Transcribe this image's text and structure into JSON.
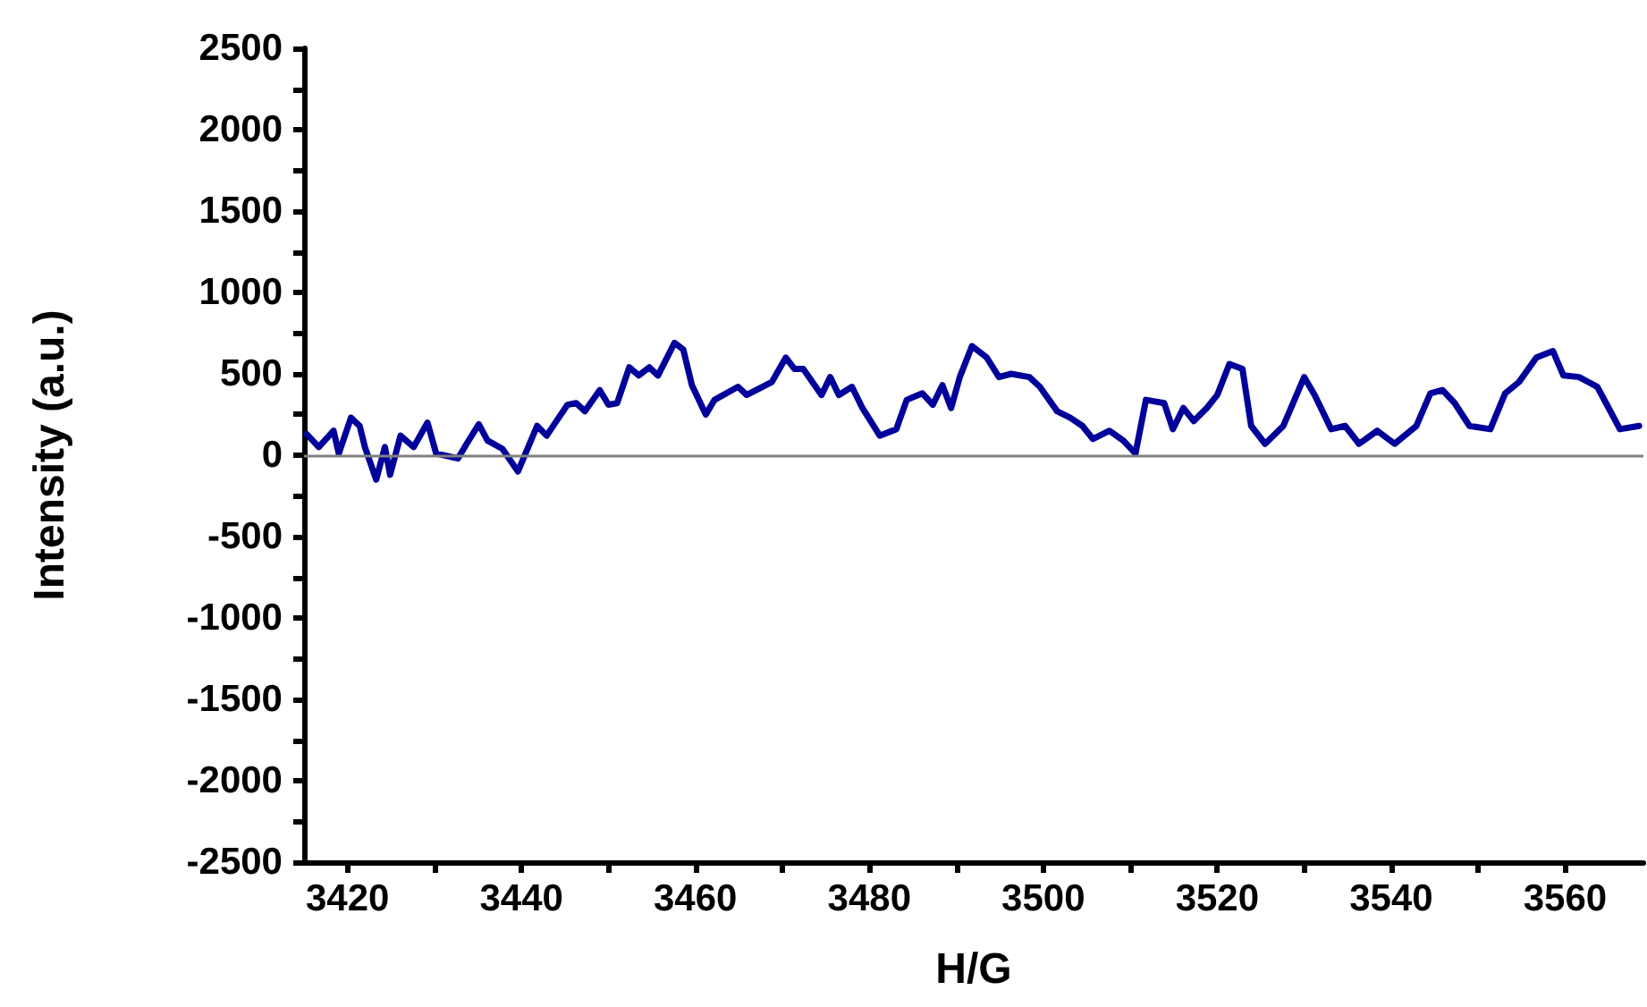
{
  "chart_data": {
    "type": "line",
    "xlabel": "H/G",
    "ylabel": "Intensity (a.u.)",
    "x": [
      3415.3,
      3416.7,
      3418.4,
      3419.0,
      3420.4,
      3421.4,
      3422.0,
      3423.3,
      3424.3,
      3424.9,
      3426.1,
      3427.6,
      3429.2,
      3430.2,
      3432.7,
      3433.7,
      3435.1,
      3436.1,
      3437.8,
      3439.6,
      3441.8,
      3442.9,
      3443.9,
      3445.3,
      3446.3,
      3447.3,
      3449.0,
      3450.0,
      3451.0,
      3452.4,
      3453.5,
      3454.7,
      3455.7,
      3457.6,
      3458.6,
      3459.6,
      3461.2,
      3462.2,
      3464.9,
      3465.9,
      3468.8,
      3470.4,
      3471.4,
      3472.4,
      3474.5,
      3475.5,
      3476.5,
      3478.0,
      3479.2,
      3481.2,
      3483.1,
      3484.3,
      3486.1,
      3487.3,
      3488.4,
      3489.4,
      3490.4,
      3491.8,
      3493.5,
      3494.9,
      3496.3,
      3498.4,
      3499.6,
      3501.6,
      3503.1,
      3504.5,
      3505.7,
      3507.6,
      3509.2,
      3510.6,
      3511.8,
      3513.9,
      3514.9,
      3516.1,
      3517.3,
      3518.8,
      3520.0,
      3521.4,
      3522.9,
      3523.9,
      3525.5,
      3527.6,
      3530.0,
      3531.2,
      3533.1,
      3534.7,
      3536.3,
      3538.4,
      3540.4,
      3542.9,
      3544.5,
      3545.9,
      3547.3,
      3549.0,
      3551.4,
      3553.1,
      3554.7,
      3556.7,
      3558.6,
      3559.8,
      3561.6,
      3563.7,
      3564.7,
      3566.3,
      3568.5
    ],
    "series": [
      {
        "color": "#00009a",
        "values": [
          130,
          50,
          150,
          10,
          230,
          180,
          50,
          -150,
          50,
          -120,
          120,
          50,
          200,
          10,
          -20,
          70,
          190,
          90,
          40,
          -100,
          180,
          120,
          200,
          310,
          320,
          270,
          400,
          310,
          320,
          540,
          490,
          540,
          490,
          690,
          650,
          430,
          250,
          340,
          420,
          370,
          450,
          600,
          530,
          530,
          370,
          480,
          370,
          420,
          290,
          120,
          160,
          340,
          380,
          310,
          430,
          290,
          480,
          670,
          600,
          480,
          500,
          480,
          420,
          270,
          230,
          180,
          100,
          150,
          90,
          10,
          340,
          320,
          160,
          290,
          210,
          290,
          370,
          560,
          530,
          180,
          70,
          180,
          480,
          370,
          160,
          180,
          70,
          150,
          70,
          180,
          380,
          400,
          320,
          180,
          160,
          380,
          450,
          600,
          640,
          490,
          480,
          420,
          320,
          160,
          180
        ]
      }
    ],
    "xlim": [
      3415,
      3569
    ],
    "xticks": [
      3420,
      {
        "value": 3430,
        "label": null
      },
      3440,
      {
        "value": 3450,
        "label": null
      },
      3460,
      {
        "value": 3470,
        "label": null
      },
      3480,
      {
        "value": 3490,
        "label": null
      },
      3500,
      {
        "value": 3510,
        "label": null
      },
      3520,
      {
        "value": 3530,
        "label": null
      },
      3540,
      {
        "value": 3550,
        "label": null
      },
      3560
    ],
    "ylim": [
      -2500,
      2500
    ],
    "yticks": [
      -2500,
      {
        "value": -2250,
        "label": null
      },
      -2000,
      {
        "value": -1750,
        "label": null
      },
      -1500,
      {
        "value": -1250,
        "label": null
      },
      -1000,
      {
        "value": -750,
        "label": null
      },
      -500,
      {
        "value": -250,
        "label": null
      },
      0,
      {
        "value": 250,
        "label": null
      },
      500,
      {
        "value": 750,
        "label": null
      },
      1000,
      {
        "value": 1250,
        "label": null
      },
      1500,
      {
        "value": 1750,
        "label": null
      },
      2000,
      {
        "value": 2250,
        "label": null
      },
      2500
    ],
    "ref_lines": [
      {
        "axis": "y",
        "value": 0,
        "color": "#808080"
      }
    ],
    "grid": false,
    "marker": "none",
    "line_style": "solid"
  }
}
